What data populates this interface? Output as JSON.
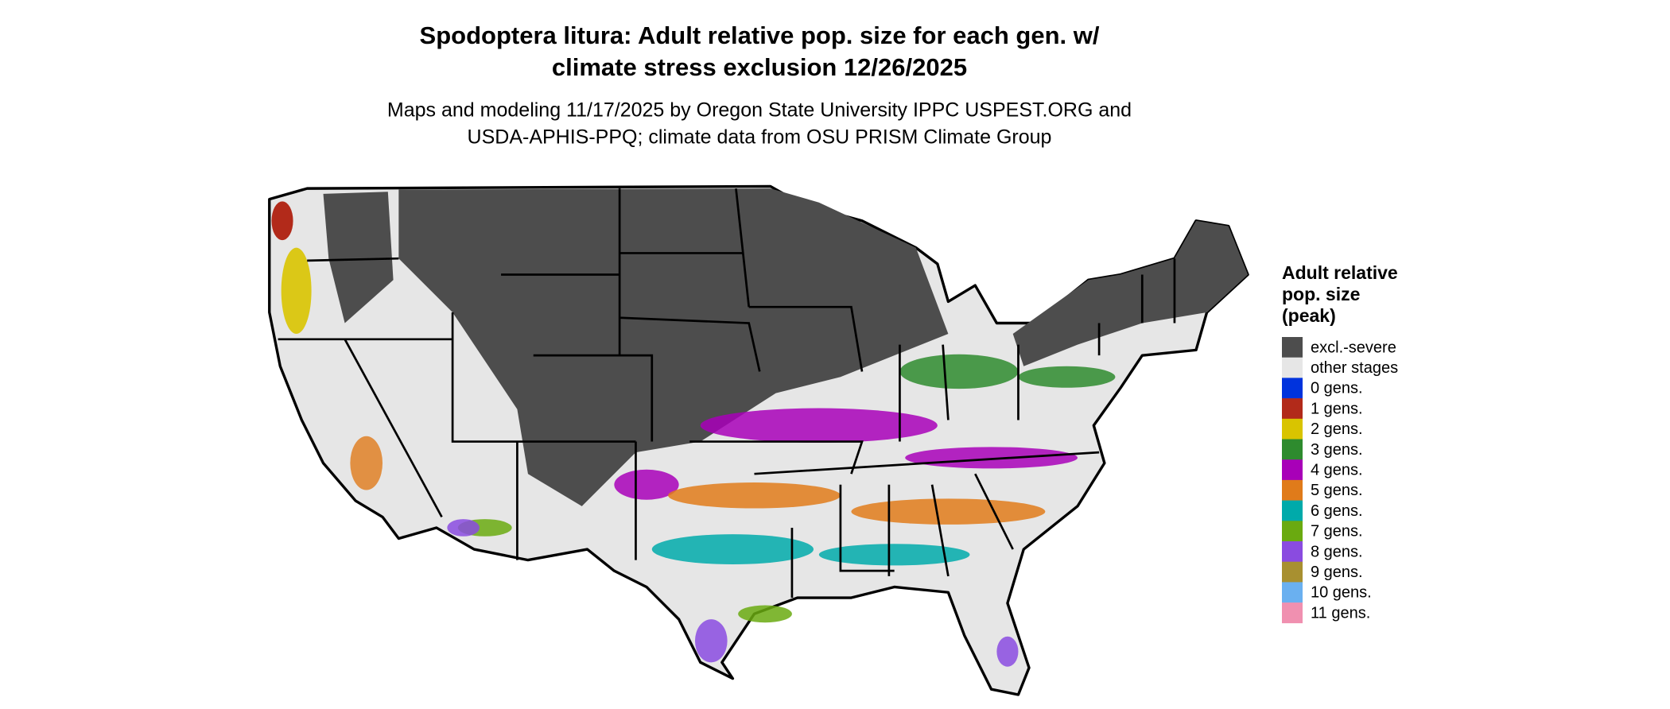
{
  "title": [
    "Spodoptera litura: Adult relative pop. size for each gen. w/",
    "climate stress exclusion 12/26/2025"
  ],
  "subtitle": [
    "Maps and modeling 11/17/2025 by Oregon State University IPPC USPEST.ORG and",
    "USDA-APHIS-PPQ; climate data from OSU PRISM Climate Group"
  ],
  "legend": {
    "title": [
      "Adult relative",
      "pop. size",
      "(peak)"
    ],
    "items": [
      {
        "label": "excl.-severe",
        "color": "#4d4d4d"
      },
      {
        "label": "other stages",
        "color": "#e6e6e6"
      },
      {
        "label": "0 gens.",
        "color": "#0033dd"
      },
      {
        "label": "1 gens.",
        "color": "#b22a1a"
      },
      {
        "label": "2 gens.",
        "color": "#d9c400"
      },
      {
        "label": "3 gens.",
        "color": "#2e8b2e"
      },
      {
        "label": "4 gens.",
        "color": "#a800b8"
      },
      {
        "label": "5 gens.",
        "color": "#e07b1a"
      },
      {
        "label": "6 gens.",
        "color": "#00aaaa"
      },
      {
        "label": "7 gens.",
        "color": "#6aaa10"
      },
      {
        "label": "8 gens.",
        "color": "#8a4be0"
      },
      {
        "label": "9 gens.",
        "color": "#a89030"
      },
      {
        "label": "10 gens.",
        "color": "#6ab0f0"
      },
      {
        "label": "11 gens.",
        "color": "#f090b0"
      }
    ]
  }
}
